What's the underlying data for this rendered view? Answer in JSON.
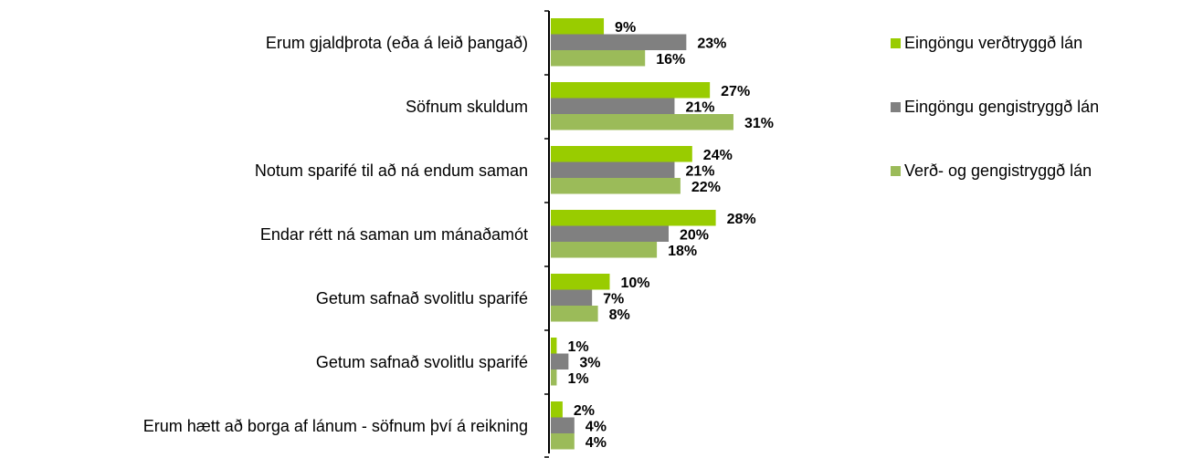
{
  "chart_data": {
    "type": "hbar",
    "categories": [
      "Erum gjaldþrota (eða á leið þangað)",
      "Söfnum skuldum",
      "Notum sparifé til að ná endum saman",
      "Endar rétt ná saman um mánaðamót",
      "Getum safnað svolitlu sparifé",
      "Getum safnað svolitlu sparifé",
      "Erum hætt að borga af lánum - söfnum því á reikning"
    ],
    "series": [
      {
        "name": "Eingöngu verðtryggð lán",
        "color": "#99cc00",
        "values": [
          9,
          27,
          24,
          28,
          10,
          1,
          2
        ],
        "value_labels": [
          "9%",
          "27%",
          "24%",
          "28%",
          "10%",
          "1%",
          "2%"
        ]
      },
      {
        "name": "Eingöngu gengistryggð lán",
        "color": "#808080",
        "values": [
          23,
          21,
          21,
          20,
          7,
          3,
          4
        ],
        "value_labels": [
          "23%",
          "21%",
          "21%",
          "20%",
          "7%",
          "3%",
          "4%"
        ]
      },
      {
        "name": "Verð- og gengistryggð lán",
        "color": "#9bbb59",
        "values": [
          16,
          31,
          22,
          18,
          8,
          1,
          4
        ],
        "value_labels": [
          "16%",
          "31%",
          "22%",
          "18%",
          "8%",
          "1%",
          "4%"
        ]
      }
    ],
    "legend": "right"
  }
}
